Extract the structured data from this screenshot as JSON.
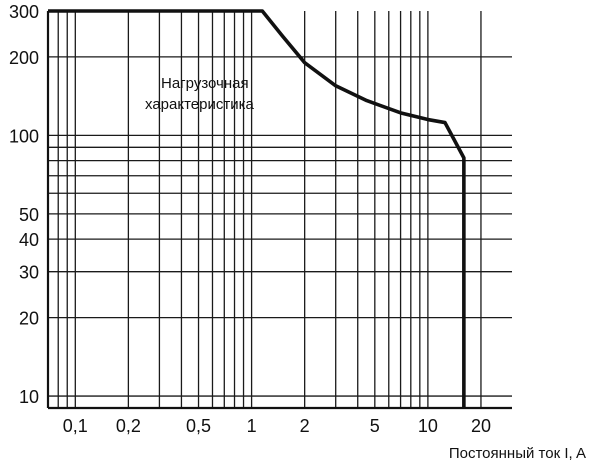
{
  "chart_data": {
    "type": "line",
    "x_scale": "log",
    "y_scale": "log",
    "xlim": [
      0.07,
      30
    ],
    "ylim": [
      9,
      300
    ],
    "grid": true,
    "xlabel": "Постоянный ток I, A",
    "ylabel": "",
    "x_ticks": [
      {
        "value": 0.1,
        "label": "0,1"
      },
      {
        "value": 0.2,
        "label": "0,2"
      },
      {
        "value": 0.5,
        "label": "0,5"
      },
      {
        "value": 1,
        "label": "1"
      },
      {
        "value": 2,
        "label": "2"
      },
      {
        "value": 5,
        "label": "5"
      },
      {
        "value": 10,
        "label": "10"
      },
      {
        "value": 20,
        "label": "20"
      }
    ],
    "y_ticks": [
      {
        "value": 10,
        "label": "10"
      },
      {
        "value": 20,
        "label": "20"
      },
      {
        "value": 30,
        "label": "30"
      },
      {
        "value": 40,
        "label": "40"
      },
      {
        "value": 50,
        "label": "50"
      },
      {
        "value": 100,
        "label": "100"
      },
      {
        "value": 200,
        "label": "200"
      },
      {
        "value": 300,
        "label": "300"
      }
    ],
    "annotation": [
      "Нагрузочная",
      "характеристика"
    ],
    "series": [
      {
        "x": [
          0.07,
          1.15,
          1.5,
          2.0,
          3.0,
          4.5,
          7.0,
          10.0,
          12.5,
          16.0,
          16.0
        ],
        "y": [
          300,
          300,
          240,
          190,
          155,
          136,
          122,
          115,
          112,
          82,
          9
        ]
      }
    ]
  }
}
